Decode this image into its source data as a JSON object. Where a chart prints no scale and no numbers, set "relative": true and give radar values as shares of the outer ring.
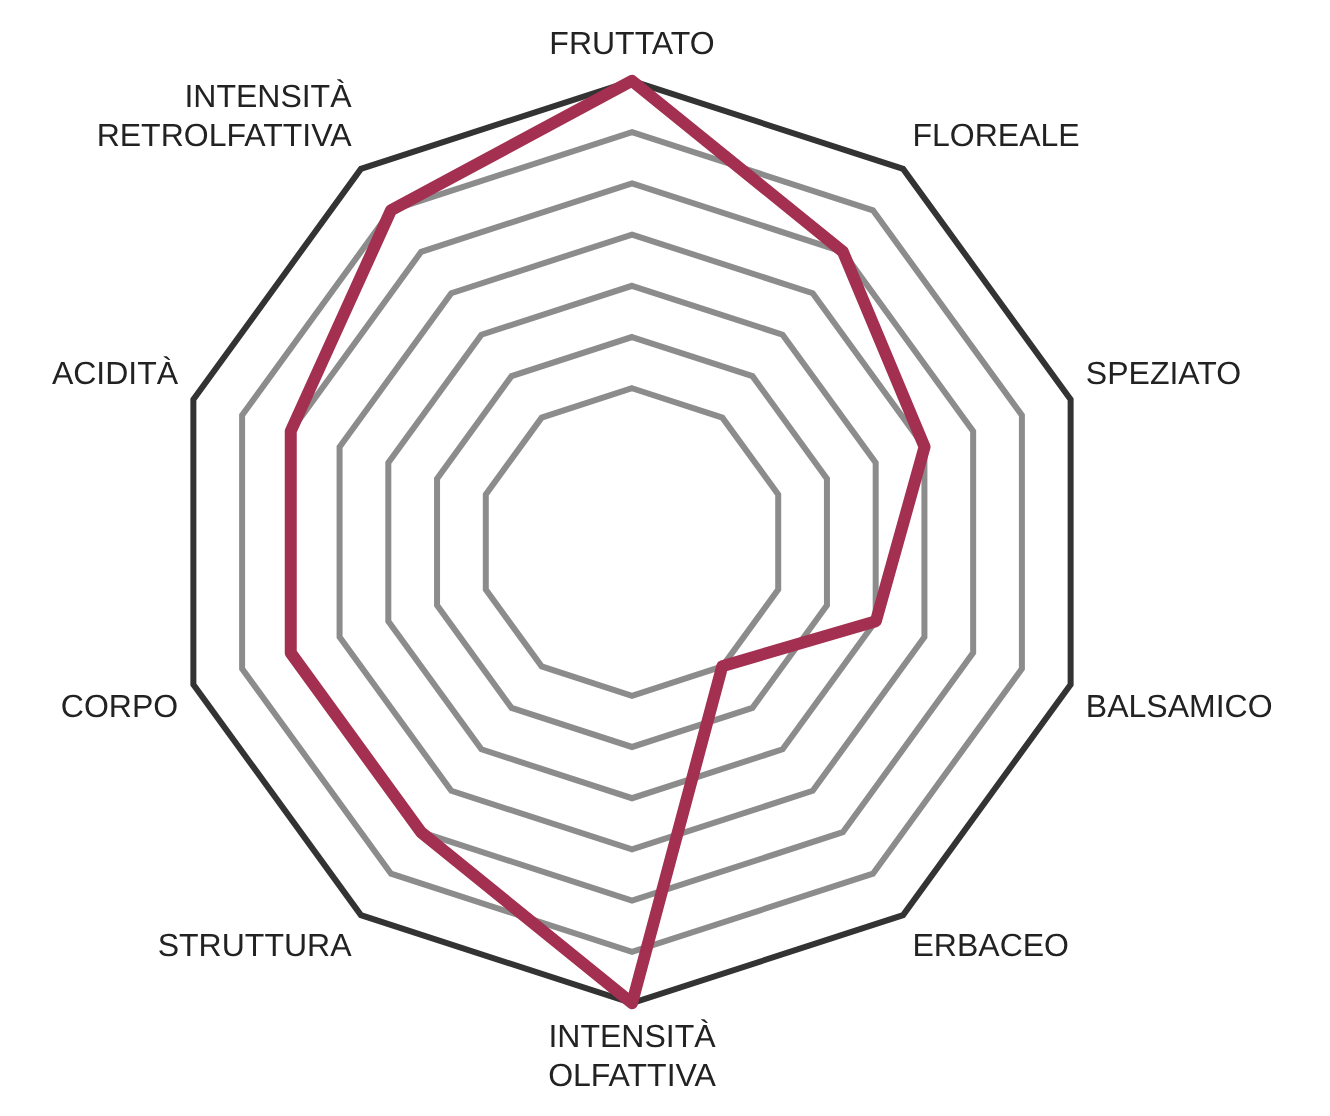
{
  "chart_data": {
    "type": "radar",
    "relative": true,
    "grid": true,
    "legend": false,
    "marker": "none",
    "line_style": "solid",
    "categories": [
      "FRUTTATO",
      "FLOREALE",
      "SPEZIATO",
      "BALSAMICO",
      "ERBACEO",
      "INTENSITÀ OLFATTIVA",
      "STRUTTURA",
      "CORPO",
      "ACIDITÀ",
      "INTENSITÀ RETROLFATTIVA"
    ],
    "series": [
      {
        "color": "#a33050",
        "values": [
          1,
          0.778,
          0.667,
          0.556,
          0.333,
          1,
          0.778,
          0.778,
          0.778,
          0.889
        ]
      }
    ]
  }
}
